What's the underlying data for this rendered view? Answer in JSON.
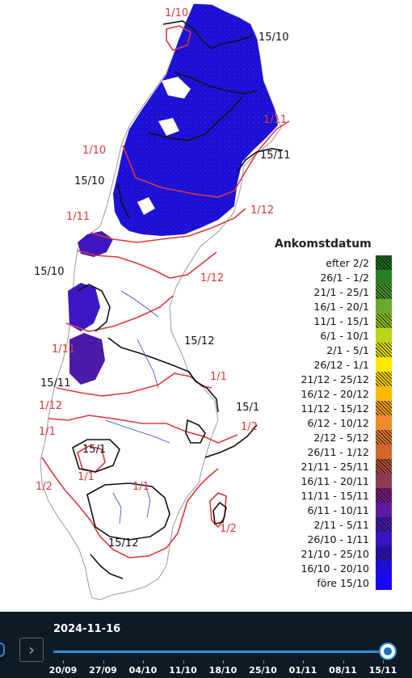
{
  "map": {
    "contour_labels": [
      {
        "id": "r1",
        "text": "1/10",
        "color": "red"
      },
      {
        "id": "b1",
        "text": "15/10",
        "color": "black"
      },
      {
        "id": "r2",
        "text": "1/11",
        "color": "red"
      },
      {
        "id": "r3",
        "text": "1/10",
        "color": "red"
      },
      {
        "id": "b2",
        "text": "15/11",
        "color": "black"
      },
      {
        "id": "b3",
        "text": "15/10",
        "color": "black"
      },
      {
        "id": "r4",
        "text": "1/11",
        "color": "red"
      },
      {
        "id": "r5",
        "text": "1/12",
        "color": "red"
      },
      {
        "id": "b4",
        "text": "15/10",
        "color": "black"
      },
      {
        "id": "r6",
        "text": "1/12",
        "color": "red"
      },
      {
        "id": "b5",
        "text": "15/12",
        "color": "black"
      },
      {
        "id": "r7",
        "text": "1/11",
        "color": "red"
      },
      {
        "id": "r8",
        "text": "1/1",
        "color": "red"
      },
      {
        "id": "b6",
        "text": "15/11",
        "color": "black"
      },
      {
        "id": "r9",
        "text": "1/12",
        "color": "red"
      },
      {
        "id": "b7",
        "text": "15/1",
        "color": "black"
      },
      {
        "id": "r10",
        "text": "1/1",
        "color": "red"
      },
      {
        "id": "r11",
        "text": "1/2",
        "color": "red"
      },
      {
        "id": "b8",
        "text": "15/1",
        "color": "black"
      },
      {
        "id": "r12",
        "text": "1/1",
        "color": "red"
      },
      {
        "id": "r13",
        "text": "1/1",
        "color": "red"
      },
      {
        "id": "r14",
        "text": "1/2",
        "color": "red"
      },
      {
        "id": "r15",
        "text": "1/2",
        "color": "red"
      },
      {
        "id": "b9",
        "text": "15/12",
        "color": "black"
      }
    ],
    "colors": {
      "snow_blue": "#1a10d8",
      "contour_red": "#e0383a",
      "contour_black": "#111111",
      "lake_blue": "#2a46d8",
      "border_gray": "#9a9a9a"
    }
  },
  "legend": {
    "title": "Ankomstdatum",
    "items": [
      {
        "label": "efter 2/2",
        "color": "#1f6b1f",
        "hatched": true
      },
      {
        "label": "26/1 - 1/2",
        "color": "#2a7f24",
        "hatched": false
      },
      {
        "label": "21/1 - 25/1",
        "color": "#48962c",
        "hatched": true
      },
      {
        "label": "16/1 - 20/1",
        "color": "#6aa82e",
        "hatched": false
      },
      {
        "label": "11/1 - 15/1",
        "color": "#93c11f",
        "hatched": true
      },
      {
        "label": "6/1 - 10/1",
        "color": "#b9d41a",
        "hatched": false
      },
      {
        "label": "2/1 - 5/1",
        "color": "#e4e20c",
        "hatched": true
      },
      {
        "label": "26/12 - 1/1",
        "color": "#ffe800",
        "hatched": false
      },
      {
        "label": "21/12 - 25/12",
        "color": "#ffd200",
        "hatched": true
      },
      {
        "label": "16/12 - 20/12",
        "color": "#ffb900",
        "hatched": false
      },
      {
        "label": "11/12 - 15/12",
        "color": "#f8a11a",
        "hatched": true
      },
      {
        "label": "6/12 - 10/12",
        "color": "#f08b2a",
        "hatched": false
      },
      {
        "label": "2/12 - 5/12",
        "color": "#e4772e",
        "hatched": true
      },
      {
        "label": "26/11 - 1/12",
        "color": "#d3652e",
        "hatched": false
      },
      {
        "label": "21/11 - 25/11",
        "color": "#b0503a",
        "hatched": true
      },
      {
        "label": "16/11 - 20/11",
        "color": "#8e3a52",
        "hatched": false
      },
      {
        "label": "11/11 - 15/11",
        "color": "#7b1a86",
        "hatched": true
      },
      {
        "label": "6/11 - 10/11",
        "color": "#5d1aa0",
        "hatched": false
      },
      {
        "label": "2/11 - 5/11",
        "color": "#4719b4",
        "hatched": true
      },
      {
        "label": "26/10 - 1/11",
        "color": "#3a14c2",
        "hatched": false
      },
      {
        "label": "21/10 - 25/10",
        "color": "#2a12d0",
        "hatched": true
      },
      {
        "label": "16/10 - 20/10",
        "color": "#1e0edb",
        "hatched": false
      },
      {
        "label": "före 15/10",
        "color": "#1608ff",
        "hatched": false
      }
    ]
  },
  "timeline": {
    "current_date": "2024-11-16",
    "next_icon": "chevron-right-icon",
    "ticks": [
      "20/09",
      "27/09",
      "04/10",
      "11/10",
      "18/10",
      "25/10",
      "01/11",
      "08/11",
      "15/11"
    ],
    "progress": 1.0
  }
}
